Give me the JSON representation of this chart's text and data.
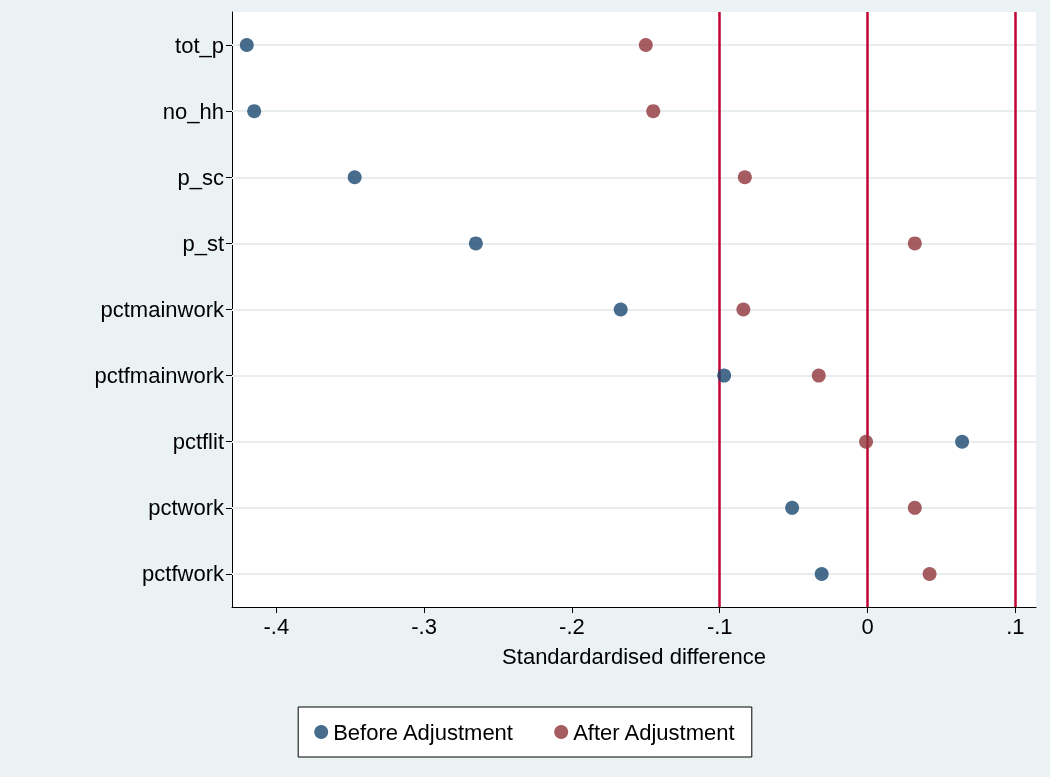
{
  "chart_data": {
    "type": "scatter",
    "orientation": "horizontal",
    "xlabel": "Standardardised difference",
    "categories": [
      "tot_p",
      "no_hh",
      "p_sc",
      "p_st",
      "pctmainwork",
      "pctfmainwork",
      "pctflit",
      "pctwork",
      "pctfwork"
    ],
    "series": [
      {
        "name": "Before Adjustment",
        "color": "#1a476f",
        "values": [
          -0.42,
          -0.415,
          -0.347,
          -0.265,
          -0.167,
          -0.097,
          0.064,
          -0.051,
          -0.031
        ]
      },
      {
        "name": "After Adjustment",
        "color": "#90353b",
        "values": [
          -0.15,
          -0.145,
          -0.083,
          0.032,
          -0.084,
          -0.033,
          -0.001,
          0.032,
          0.042
        ]
      }
    ],
    "xlim": [
      -0.43,
      0.114
    ],
    "xticks": [
      {
        "value": -0.4,
        "label": "-.4"
      },
      {
        "value": -0.3,
        "label": "-.3"
      },
      {
        "value": -0.2,
        "label": "-.2"
      },
      {
        "value": -0.1,
        "label": "-.1"
      },
      0,
      {
        "value": 0.1,
        "label": ".1"
      }
    ],
    "ref_lines": [
      {
        "axis": "x",
        "value": -0.1,
        "color": "#c10534"
      },
      {
        "axis": "x",
        "value": 0,
        "color": "#c10534"
      },
      {
        "axis": "x",
        "value": 0.1,
        "color": "#c10534"
      }
    ],
    "grid": "y",
    "legend": "bottom",
    "marker": "circle"
  }
}
